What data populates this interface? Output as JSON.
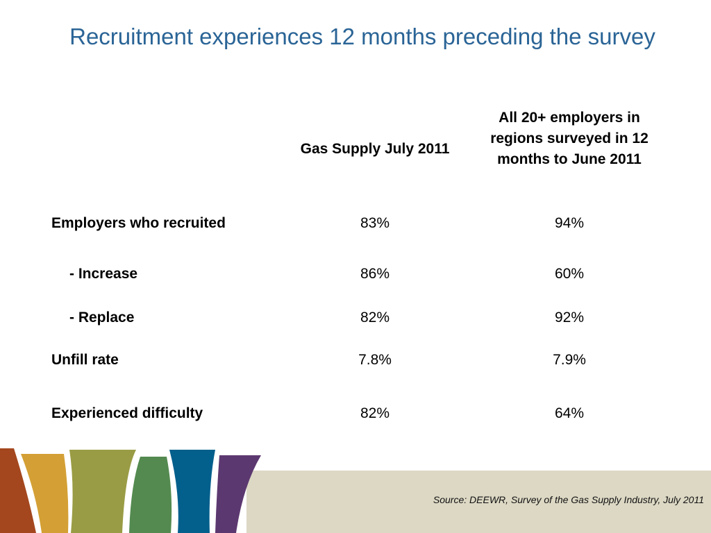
{
  "slide": {
    "title": "Recruitment experiences 12 months preceding the survey"
  },
  "table": {
    "columns": [
      "Gas Supply July 2011",
      "All 20+ employers in regions surveyed in 12 months to June 2011"
    ],
    "rows": [
      {
        "label": "Employers who recruited",
        "values": [
          "83%",
          "94%"
        ]
      },
      {
        "label": "- Increase",
        "values": [
          "86%",
          "60%"
        ]
      },
      {
        "label": "- Replace",
        "values": [
          "82%",
          "92%"
        ]
      },
      {
        "label": "Unfill rate",
        "values": [
          "7.8%",
          "7.9%"
        ]
      },
      {
        "label": "Experienced difficulty",
        "values": [
          "82%",
          "64%"
        ]
      }
    ]
  },
  "footer": {
    "source": "Source: DEEWR, Survey of the Gas Supply Industry, July 2011"
  },
  "colors": {
    "title": "#2a6496",
    "stripe_rust": "#a4471e",
    "stripe_gold": "#d4a035",
    "stripe_olive": "#9a9c45",
    "stripe_green": "#548a50",
    "stripe_blue": "#035f8c",
    "stripe_purple": "#5c3870",
    "band": "#dcd8c4"
  }
}
